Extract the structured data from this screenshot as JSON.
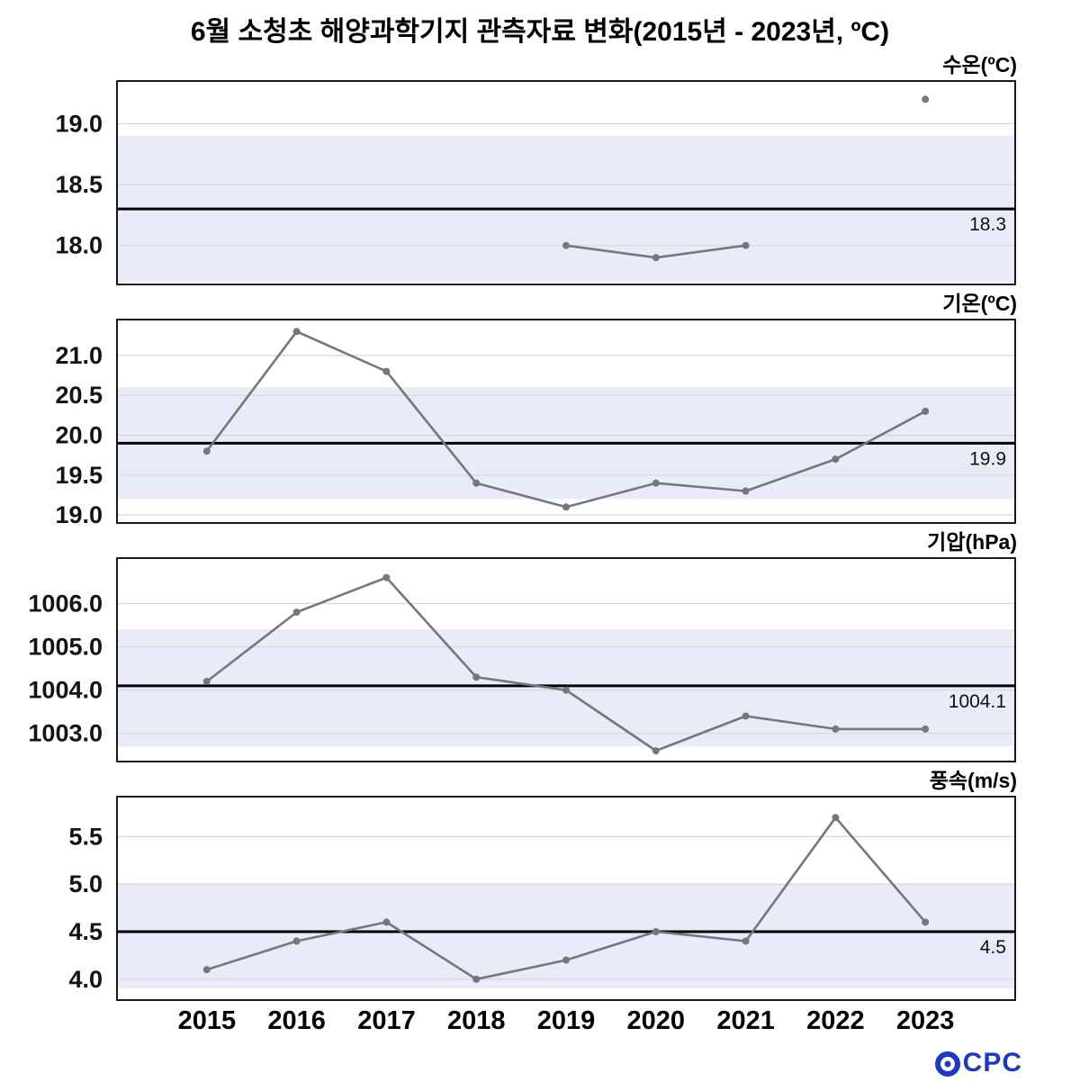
{
  "title": "6월 소청초 해양과학기지 관측자료 변화(2015년 - 2023년, ºC)",
  "colors": {
    "band": "#e9ebf9",
    "grid": "#d8d8d8",
    "mean_line": "#000000",
    "series": "#76767e",
    "border": "#000000",
    "logo": "#1d39c4"
  },
  "x_categories": [
    "2015",
    "2016",
    "2017",
    "2018",
    "2019",
    "2020",
    "2021",
    "2022",
    "2023"
  ],
  "logo": {
    "icon": "target-circle-icon",
    "text": "CPC"
  },
  "chart_data": [
    {
      "type": "line",
      "title": "수온(ºC)",
      "x": [
        2015,
        2016,
        2017,
        2018,
        2019,
        2020,
        2021,
        2022,
        2023
      ],
      "values": [
        null,
        null,
        null,
        null,
        18.0,
        17.9,
        18.0,
        null,
        19.2
      ],
      "mean": 18.3,
      "mean_label": "18.3",
      "band": [
        17.7,
        18.9
      ],
      "ylim": [
        17.68,
        19.35
      ],
      "yticks": [
        18.0,
        18.5,
        19.0
      ],
      "ytick_labels": [
        "18.0",
        "18.5",
        "19.0"
      ],
      "grid": true,
      "legend": "none"
    },
    {
      "type": "line",
      "title": "기온(ºC)",
      "x": [
        2015,
        2016,
        2017,
        2018,
        2019,
        2020,
        2021,
        2022,
        2023
      ],
      "values": [
        19.8,
        21.3,
        20.8,
        19.4,
        19.1,
        19.4,
        19.3,
        19.7,
        20.3
      ],
      "mean": 19.9,
      "mean_label": "19.9",
      "band": [
        19.2,
        20.6
      ],
      "ylim": [
        18.9,
        21.45
      ],
      "yticks": [
        19.0,
        19.5,
        20.0,
        20.5,
        21.0
      ],
      "ytick_labels": [
        "19.0",
        "19.5",
        "20.0",
        "20.5",
        "21.0"
      ],
      "grid": true,
      "legend": "none"
    },
    {
      "type": "line",
      "title": "기압(hPa)",
      "x": [
        2015,
        2016,
        2017,
        2018,
        2019,
        2020,
        2021,
        2022,
        2023
      ],
      "values": [
        1004.2,
        1005.8,
        1006.6,
        1004.3,
        1004.0,
        1002.6,
        1003.4,
        1003.1,
        1003.1
      ],
      "mean": 1004.1,
      "mean_label": "1004.1",
      "band": [
        1002.7,
        1005.4
      ],
      "ylim": [
        1002.35,
        1007.05
      ],
      "yticks": [
        1003.0,
        1004.0,
        1005.0,
        1006.0
      ],
      "ytick_labels": [
        "1003.0",
        "1004.0",
        "1005.0",
        "1006.0"
      ],
      "grid": true,
      "legend": "none"
    },
    {
      "type": "line",
      "title": "풍속(m/s)",
      "x": [
        2015,
        2016,
        2017,
        2018,
        2019,
        2020,
        2021,
        2022,
        2023
      ],
      "values": [
        4.1,
        4.4,
        4.6,
        4.0,
        4.2,
        4.5,
        4.4,
        5.7,
        4.6
      ],
      "mean": 4.5,
      "mean_label": "4.5",
      "band": [
        3.9,
        5.0
      ],
      "ylim": [
        3.78,
        5.92
      ],
      "yticks": [
        4.0,
        4.5,
        5.0,
        5.5
      ],
      "ytick_labels": [
        "4.0",
        "4.5",
        "5.0",
        "5.5"
      ],
      "grid": true,
      "legend": "none"
    }
  ]
}
